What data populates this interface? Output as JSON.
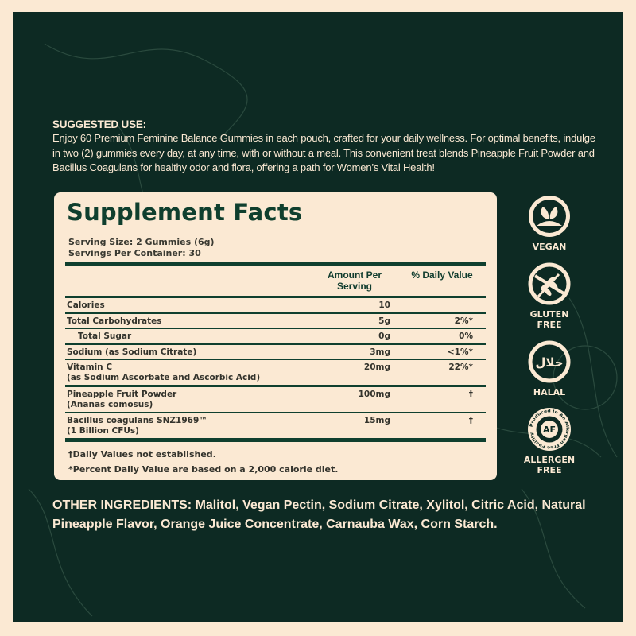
{
  "suggested_use": {
    "heading": "SUGGESTED USE:",
    "text": "Enjoy 60 Premium Feminine Balance Gummies in each pouch, crafted for your daily wellness. For optimal benefits, indulge in two (2) gummies every day, at any time, with or without a meal. This convenient treat blends Pineapple Fruit Powder and Bacillus Coagulans for healthy odor and flora, offering a path for Women’s Vital Health!"
  },
  "facts": {
    "title": "Supplement Facts",
    "serving_size": "Serving Size: 2 Gummies (6g)",
    "servings_per_container": "Servings Per Container: 30",
    "col_amount": "Amount Per Serving",
    "col_dv": "% Daily Value",
    "rows": [
      {
        "name": "Calories",
        "sub": "",
        "amount": "10",
        "dv": ""
      },
      {
        "name": "Total Carbohydrates",
        "sub": "",
        "amount": "5g",
        "dv": "2%*"
      },
      {
        "name": "Total Sugar",
        "sub": "",
        "amount": "0g",
        "dv": "0%"
      },
      {
        "name": "Sodium (as Sodium Citrate)",
        "sub": "",
        "amount": "3mg",
        "dv": "<1%*"
      },
      {
        "name": "Vitamin C",
        "sub": "(as Sodium Ascorbate and Ascorbic Acid)",
        "amount": "20mg",
        "dv": "22%*"
      },
      {
        "name": "Pineapple Fruit Powder",
        "sub": "(Ananas comosus)",
        "amount": "100mg",
        "dv": "†"
      },
      {
        "name": "Bacillus coagulans SNZ1969™",
        "sub": "(1 Billion CFUs)",
        "amount": "15mg",
        "dv": "†"
      }
    ],
    "footnote1": "†Daily Values not established.",
    "footnote2": "*Percent Daily Value are based on a 2,000 calorie diet."
  },
  "badges": [
    {
      "label1": "VEGAN",
      "label2": "",
      "icon": "leaf-icon"
    },
    {
      "label1": "GLUTEN",
      "label2": "FREE",
      "icon": "no-wheat-icon"
    },
    {
      "label1": "HALAL",
      "label2": "",
      "icon": "halal-icon",
      "glyph": "حلال"
    },
    {
      "label1": "ALLERGEN",
      "label2": "FREE",
      "icon": "allergen-free-icon",
      "glyph": "AF",
      "ring_text": "Produced In An Allergen Free Facility"
    }
  ],
  "other_ingredients": "OTHER INGREDIENTS: Malitol, Vegan Pectin, Sodium Citrate, Xylitol, Citric Acid, Natural Pineapple Flavor, Orange Juice Concentrate, Carnauba Wax, Corn Starch.",
  "colors": {
    "background": "#0d2a23",
    "cream": "#fbe9d3",
    "green": "#0f3f2e"
  }
}
